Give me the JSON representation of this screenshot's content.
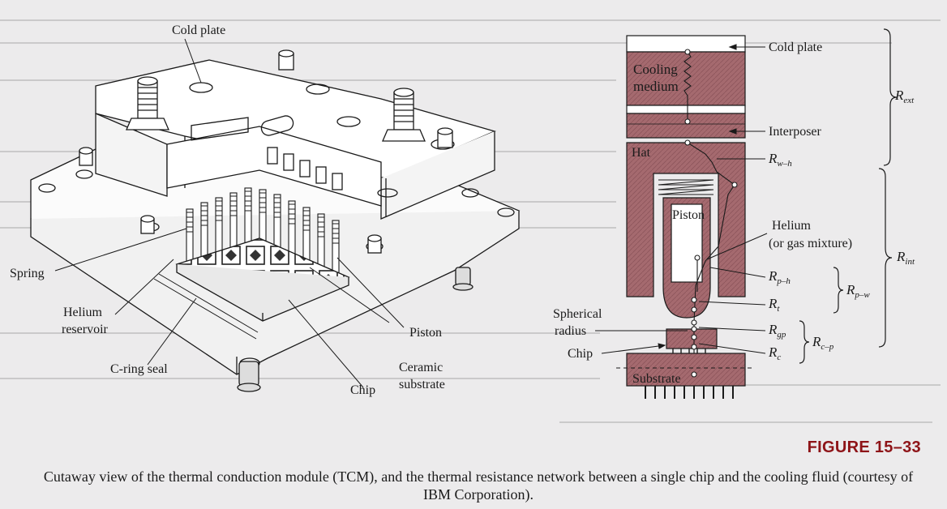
{
  "figure": {
    "number": "FIGURE 15–33",
    "caption": "Cutaway view of the thermal conduction module (TCM), and the thermal resistance network between a single chip and the cooling fluid (courtesy of IBM Corporation)."
  },
  "cutaway_labels": {
    "cold_plate": "Cold plate",
    "spring": "Spring",
    "helium_line1": "Helium",
    "helium_line2": "reservoir",
    "c_ring_seal": "C-ring seal",
    "chip": "Chip",
    "ceramic_line1": "Ceramic",
    "ceramic_line2": "substrate",
    "piston": "Piston"
  },
  "network_labels": {
    "cold_plate": "Cold plate",
    "cooling_line1": "Cooling",
    "cooling_line2": "medium",
    "interposer": "Interposer",
    "hat": "Hat",
    "piston": "Piston",
    "helium_line1": "Helium",
    "helium_line2": "(or gas mixture)",
    "spherical_line1": "Spherical",
    "spherical_line2": "radius",
    "chip": "Chip",
    "substrate": "Substrate"
  },
  "resistances": {
    "R_ext_main": "R",
    "R_ext_sub": "ext",
    "R_int_main": "R",
    "R_int_sub": "int",
    "R_wh_main": "R",
    "R_wh_sub": "w–h",
    "R_ph_main": "R",
    "R_ph_sub": "p–h",
    "R_t_main": "R",
    "R_t_sub": "t",
    "R_gp_main": "R",
    "R_gp_sub": "gp",
    "R_c_main": "R",
    "R_c_sub": "c",
    "R_pw_main": "R",
    "R_pw_sub": "p–w",
    "R_cp_main": "R",
    "R_cp_sub": "c–p"
  },
  "colors": {
    "hatch_fill": "#a56a6f",
    "line": "#1a1a1a",
    "figure_number": "#8e1418"
  }
}
